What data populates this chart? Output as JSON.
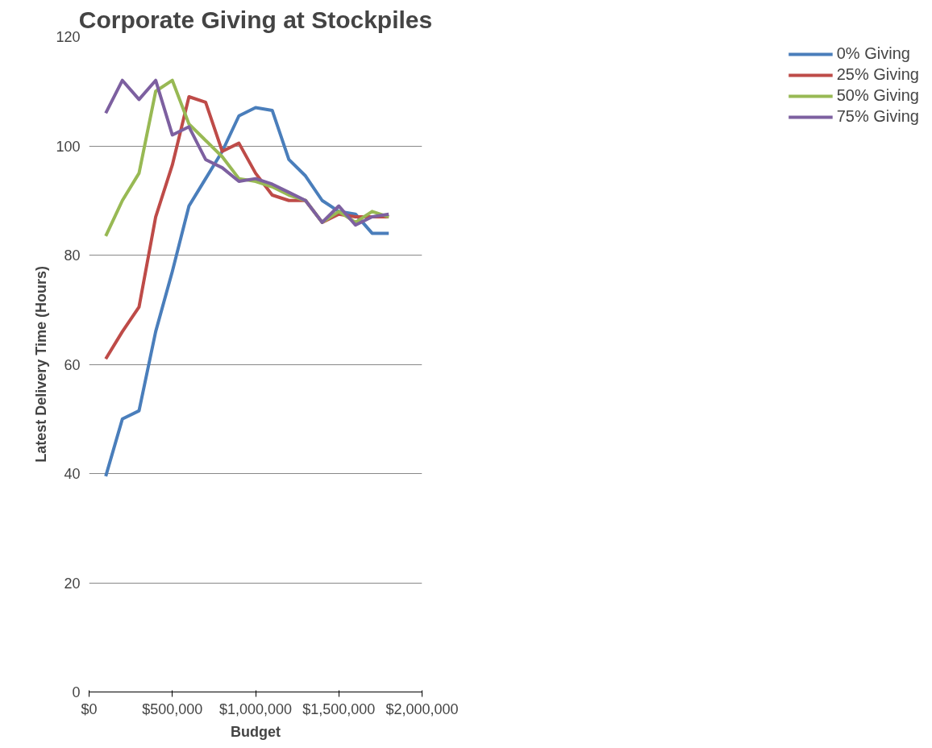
{
  "chart_data": {
    "type": "line",
    "title": "Corporate Giving at Stockpiles",
    "xlabel": "Budget",
    "ylabel": "Latest Delivery Time (Hours)",
    "x": [
      100000,
      200000,
      300000,
      400000,
      500000,
      600000,
      700000,
      800000,
      900000,
      1000000,
      1100000,
      1200000,
      1300000,
      1400000,
      1500000,
      1600000,
      1700000,
      1800000
    ],
    "series": [
      {
        "name": "0% Giving",
        "color": "#4a7ebb",
        "values": [
          39.5,
          50,
          51.5,
          66,
          77,
          89,
          94,
          99,
          105.5,
          107,
          106.5,
          97.5,
          94.5,
          90,
          88,
          87.5,
          84,
          84
        ]
      },
      {
        "name": "25% Giving",
        "color": "#be4b48",
        "values": [
          61,
          66,
          70.5,
          87,
          96.5,
          109,
          108,
          99,
          100.5,
          95,
          91,
          90,
          90,
          86,
          87.5,
          87,
          87,
          87
        ]
      },
      {
        "name": "50% Giving",
        "color": "#98b954",
        "values": [
          83.5,
          90,
          95,
          110,
          112,
          104,
          101,
          98,
          94,
          93.5,
          92.5,
          91,
          90,
          86,
          88,
          86,
          88,
          87
        ]
      },
      {
        "name": "75% Giving",
        "color": "#7d60a0",
        "values": [
          106,
          112,
          108.5,
          112,
          102,
          103.5,
          97.5,
          96,
          93.5,
          94,
          93,
          91.5,
          90,
          86,
          89,
          85.5,
          87,
          87.5
        ]
      }
    ],
    "xlim": [
      0,
      2000000
    ],
    "xticks": [
      {
        "value": 0,
        "label": "$0"
      },
      {
        "value": 500000,
        "label": "$500,000"
      },
      {
        "value": 1000000,
        "label": "$1,000,000"
      },
      {
        "value": 1500000,
        "label": "$1,500,000"
      },
      {
        "value": 2000000,
        "label": "$2,000,000"
      }
    ],
    "ylim": [
      0,
      120
    ],
    "yticks": [
      0,
      20,
      40,
      60,
      80,
      100,
      120
    ],
    "grid": "y",
    "legend": "right",
    "marker": "none",
    "line_style": "solid"
  }
}
